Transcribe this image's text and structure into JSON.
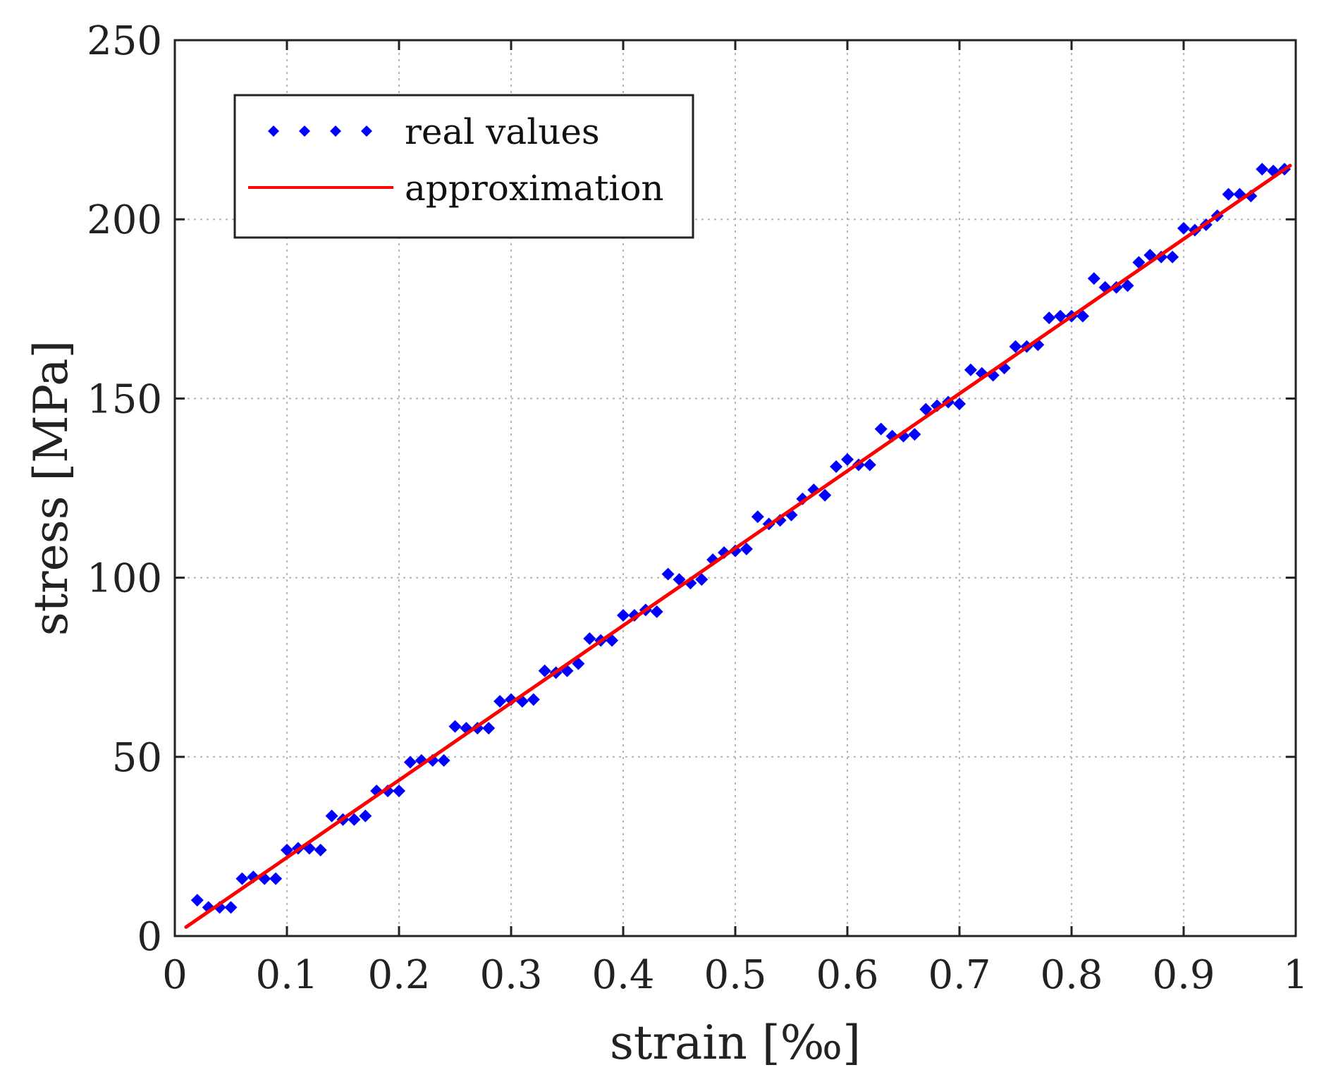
{
  "chart_data": {
    "type": "scatter",
    "title": "",
    "xlabel": "strain [‰]",
    "ylabel": "stress [MPa]",
    "xlim": [
      0,
      1
    ],
    "ylim": [
      0,
      250
    ],
    "grid": true,
    "legend_position": "top-left",
    "x_ticks": [
      {
        "value": 0,
        "label": "0"
      },
      {
        "value": 0.1,
        "label": "0.1"
      },
      {
        "value": 0.2,
        "label": "0.2"
      },
      {
        "value": 0.3,
        "label": "0.3"
      },
      {
        "value": 0.4,
        "label": "0.4"
      },
      {
        "value": 0.5,
        "label": "0.5"
      },
      {
        "value": 0.6,
        "label": "0.6"
      },
      {
        "value": 0.7,
        "label": "0.7"
      },
      {
        "value": 0.8,
        "label": "0.8"
      },
      {
        "value": 0.9,
        "label": "0.9"
      },
      {
        "value": 1,
        "label": "1"
      }
    ],
    "y_ticks": [
      {
        "value": 0,
        "label": "0"
      },
      {
        "value": 50,
        "label": "50"
      },
      {
        "value": 100,
        "label": "100"
      },
      {
        "value": 150,
        "label": "150"
      },
      {
        "value": 200,
        "label": "200"
      },
      {
        "value": 250,
        "label": "250"
      }
    ],
    "series": [
      {
        "name": "real values",
        "type": "scatter",
        "color": "#0000ff",
        "marker": "diamond",
        "x": [
          0.02,
          0.03,
          0.04,
          0.05,
          0.06,
          0.07,
          0.08,
          0.09,
          0.1,
          0.11,
          0.12,
          0.13,
          0.14,
          0.15,
          0.16,
          0.17,
          0.18,
          0.19,
          0.2,
          0.21,
          0.22,
          0.23,
          0.24,
          0.25,
          0.26,
          0.27,
          0.28,
          0.29,
          0.3,
          0.31,
          0.32,
          0.33,
          0.34,
          0.35,
          0.36,
          0.37,
          0.38,
          0.39,
          0.4,
          0.41,
          0.42,
          0.43,
          0.44,
          0.45,
          0.46,
          0.47,
          0.48,
          0.49,
          0.5,
          0.51,
          0.52,
          0.53,
          0.54,
          0.55,
          0.56,
          0.57,
          0.58,
          0.59,
          0.6,
          0.61,
          0.62,
          0.63,
          0.64,
          0.65,
          0.66,
          0.67,
          0.68,
          0.69,
          0.7,
          0.71,
          0.72,
          0.73,
          0.74,
          0.75,
          0.76,
          0.77,
          0.78,
          0.79,
          0.8,
          0.81,
          0.82,
          0.83,
          0.84,
          0.85,
          0.86,
          0.87,
          0.88,
          0.89,
          0.9,
          0.91,
          0.92,
          0.93,
          0.94,
          0.95,
          0.96,
          0.97,
          0.98,
          0.99
        ],
        "y": [
          10,
          8,
          8,
          8,
          16,
          16.5,
          16,
          16,
          24,
          24.5,
          24.5,
          24,
          33.5,
          32.5,
          32.5,
          33.5,
          40.5,
          40.5,
          40.5,
          48.5,
          49,
          49,
          49,
          58.5,
          58,
          58,
          58,
          65.5,
          66,
          65.5,
          66,
          74,
          73.5,
          74,
          76,
          83,
          82.5,
          82.5,
          89.5,
          89.5,
          91,
          90.5,
          101,
          99.5,
          98.5,
          99.5,
          105,
          107,
          107.5,
          108,
          117,
          115,
          116,
          117.5,
          122,
          124.5,
          123,
          131,
          133,
          131.5,
          131.5,
          141.5,
          139.5,
          139.5,
          140,
          147,
          148,
          149,
          148.5,
          158,
          157,
          156.5,
          158.5,
          164.5,
          164.5,
          165,
          172.5,
          173,
          173,
          173,
          183.5,
          181,
          181,
          181.5,
          188,
          190,
          189.5,
          189.5,
          197.5,
          197,
          198.5,
          201,
          207,
          207,
          206.5,
          214,
          213.5,
          214
        ]
      },
      {
        "name": "approximation",
        "type": "line",
        "color": "#ff0000",
        "x": [
          0.01,
          0.995
        ],
        "y": [
          2.5,
          215
        ]
      }
    ]
  }
}
